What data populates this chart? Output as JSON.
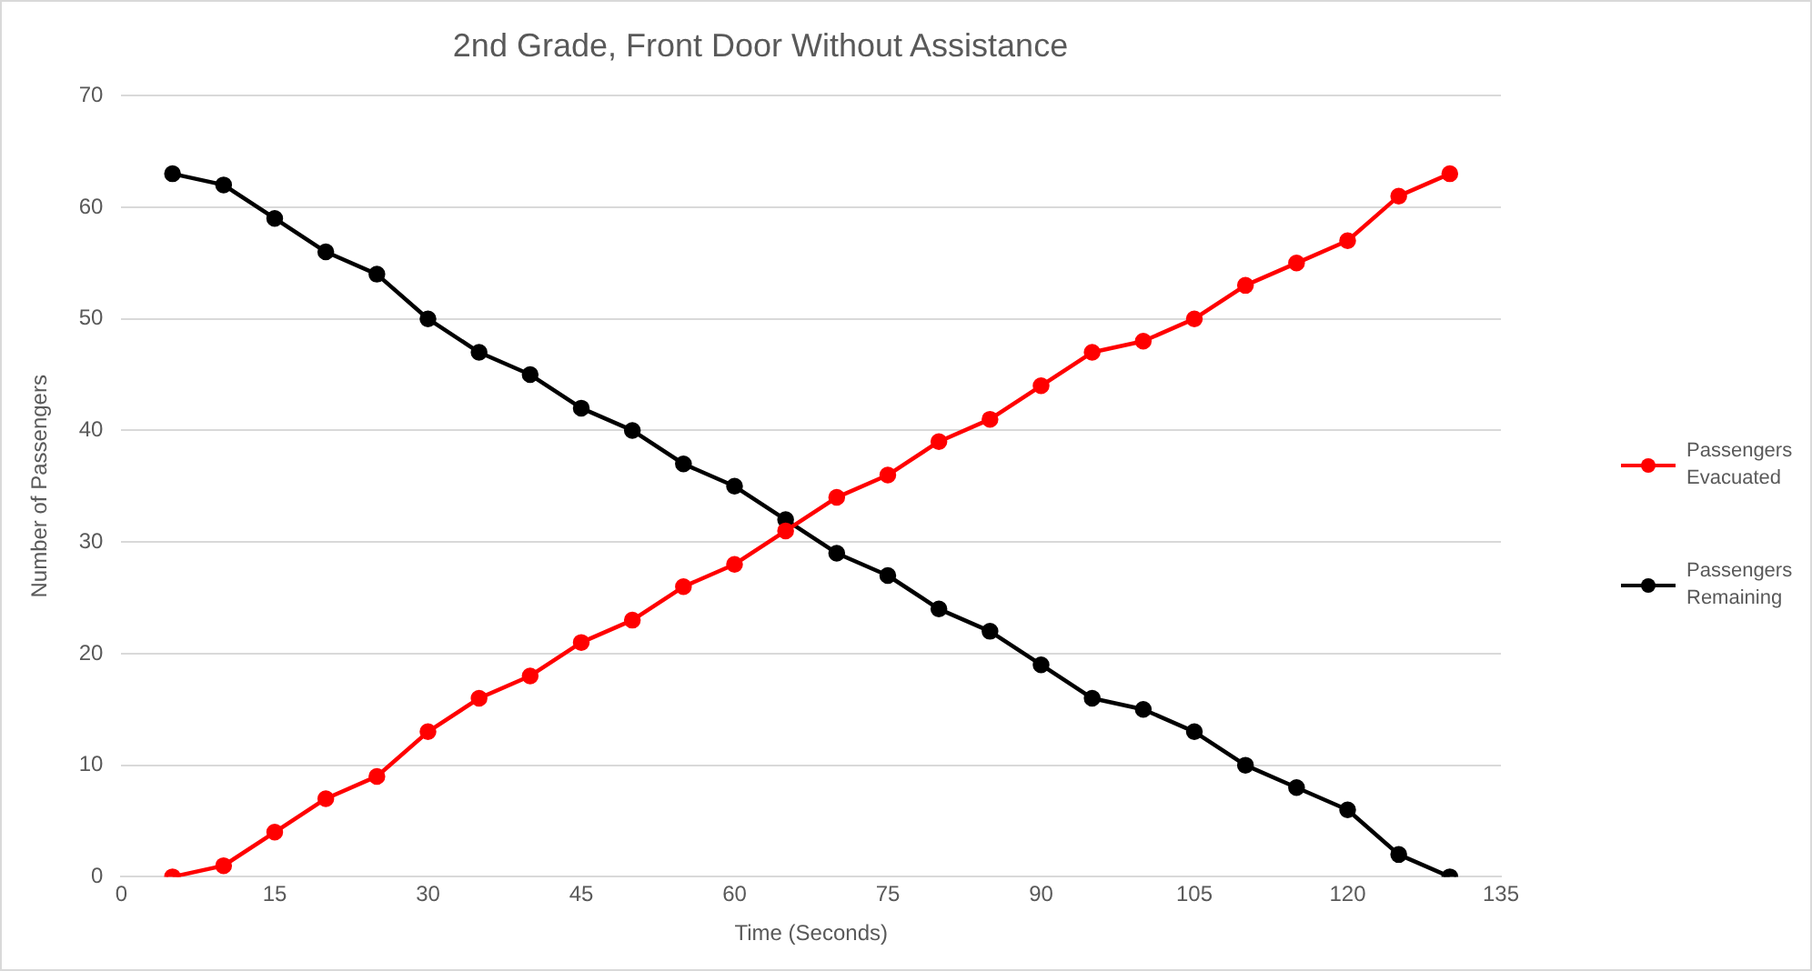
{
  "chart_data": {
    "type": "line",
    "title": "2nd Grade, Front Door Without Assistance",
    "xlabel": "Time (Seconds)",
    "ylabel": "Number of Passengers",
    "x": [
      5,
      10,
      15,
      20,
      25,
      30,
      35,
      40,
      45,
      50,
      55,
      60,
      65,
      70,
      75,
      80,
      85,
      90,
      95,
      100,
      105,
      110,
      115,
      120,
      125,
      130
    ],
    "series": [
      {
        "name": "Passengers Evacuated",
        "color": "#ff0000",
        "values": [
          0,
          1,
          4,
          7,
          9,
          13,
          16,
          18,
          21,
          23,
          26,
          28,
          31,
          34,
          36,
          39,
          41,
          44,
          47,
          48,
          50,
          53,
          55,
          57,
          61,
          63
        ]
      },
      {
        "name": "Passengers Remaining",
        "color": "#000000",
        "values": [
          63,
          62,
          59,
          56,
          54,
          50,
          47,
          45,
          42,
          40,
          37,
          35,
          32,
          29,
          27,
          24,
          22,
          19,
          16,
          15,
          13,
          10,
          8,
          6,
          2,
          0
        ]
      }
    ],
    "xlim": [
      0,
      135
    ],
    "xticks": [
      0,
      15,
      30,
      45,
      60,
      75,
      90,
      105,
      120,
      135
    ],
    "ylim": [
      0,
      70
    ],
    "yticks": [
      0,
      10,
      20,
      30,
      40,
      50,
      60,
      70
    ],
    "grid": "y",
    "legend": "right",
    "marker": "circle",
    "line_style": "solid"
  }
}
